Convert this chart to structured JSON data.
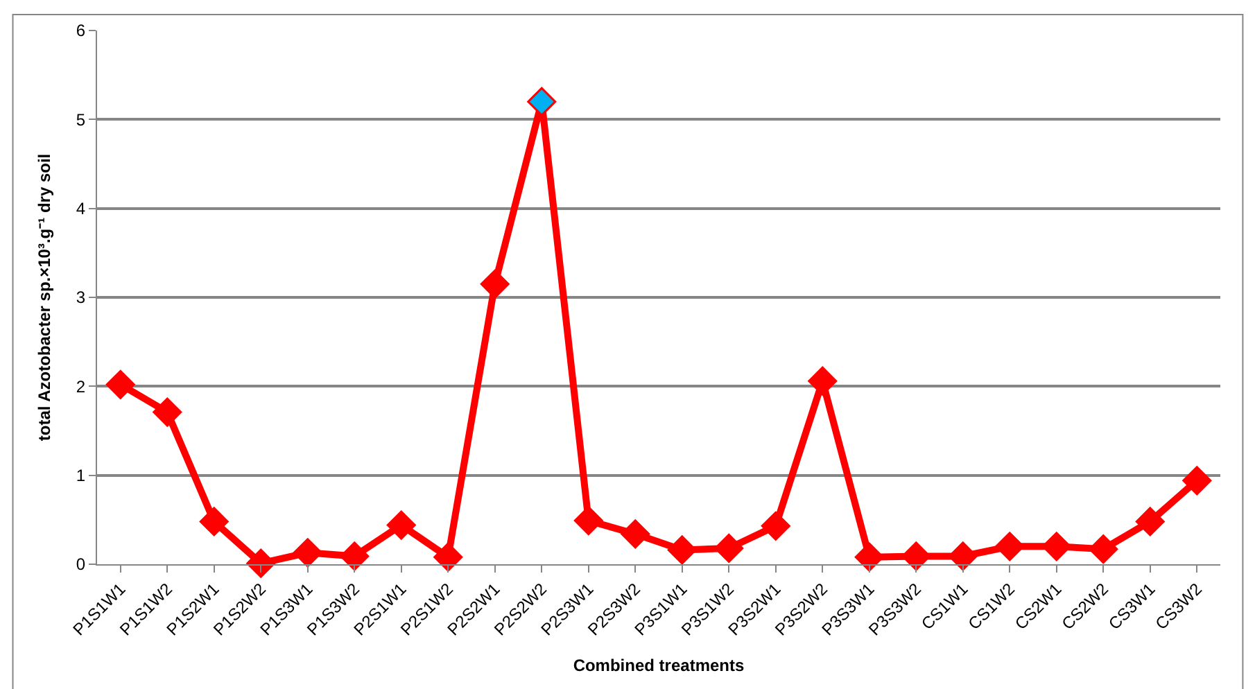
{
  "chart_data": {
    "type": "line",
    "xlabel": "Combined treatments",
    "ylabel": "total Azotobacter sp.×10³.g⁻¹ dry soil",
    "categories": [
      "P1S1W1",
      "P1S1W2",
      "P1S2W1",
      "P1S2W2",
      "P1S3W1",
      "P1S3W2",
      "P2S1W1",
      "P2S1W2",
      "P2S2W1",
      "P2S2W2",
      "P2S3W1",
      "P2S3W2",
      "P3S1W1",
      "P3S1W2",
      "P3S2W1",
      "P3S2W2",
      "P3S3W1",
      "P3S3W2",
      "CS1W1",
      "CS1W2",
      "CS2W1",
      "CS2W2",
      "CS3W1",
      "CS3W2"
    ],
    "series": [
      {
        "color": "#ff0000",
        "values": [
          2.02,
          1.71,
          0.48,
          0.01,
          0.13,
          0.09,
          0.44,
          0.08,
          3.15,
          5.2,
          0.49,
          0.34,
          0.16,
          0.18,
          0.43,
          2.06,
          0.08,
          0.09,
          0.09,
          0.2,
          0.2,
          0.17,
          0.48,
          0.94
        ],
        "colors": [
          "#ff0000",
          "#ff0000",
          "#ff0000",
          "#ff0000",
          "#ff0000",
          "#ff0000",
          "#ff0000",
          "#ff0000",
          "#ff0000",
          "#00b0f0",
          "#ff0000",
          "#ff0000",
          "#ff0000",
          "#ff0000",
          "#ff0000",
          "#ff0000",
          "#ff0000",
          "#ff0000",
          "#ff0000",
          "#ff0000",
          "#ff0000",
          "#ff0000",
          "#ff0000",
          "#ff0000"
        ]
      }
    ],
    "ylim": [
      0,
      6
    ],
    "yticks": [
      0,
      1,
      2,
      3,
      4,
      5,
      6
    ],
    "grid": "y",
    "marker": "diamond",
    "line_style": "solid",
    "legend": false
  }
}
